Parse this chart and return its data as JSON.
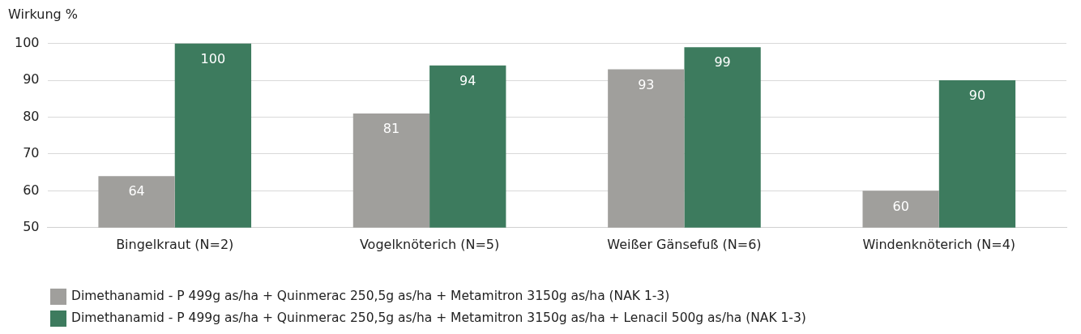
{
  "chart_data": {
    "type": "bar",
    "ylabel": "Wirkung %",
    "categories": [
      "Bingelkraut (N=2)",
      "Vogelknöterich (N=5)",
      "Weißer Gänsefuß (N=6)",
      "Windenknöterich (N=4)"
    ],
    "series": [
      {
        "name": "Dimethanamid - P 499g as/ha + Quinmerac 250,5g as/ha + Metamitron 3150g as/ha (NAK 1-3)",
        "color": "#a09f9c",
        "values": [
          64,
          81,
          93,
          60
        ]
      },
      {
        "name": "Dimethanamid - P 499g as/ha + Quinmerac 250,5g as/ha + Metamitron 3150g as/ha + Lenacil 500g as/ha (NAK 1-3)",
        "color": "#3d7b5e",
        "values": [
          100,
          94,
          99,
          90
        ]
      }
    ],
    "ylim": [
      50,
      100
    ],
    "yticks": [
      50,
      60,
      70,
      80,
      90,
      100
    ],
    "grid": "y",
    "data_labels": true,
    "legend": "bottom"
  }
}
